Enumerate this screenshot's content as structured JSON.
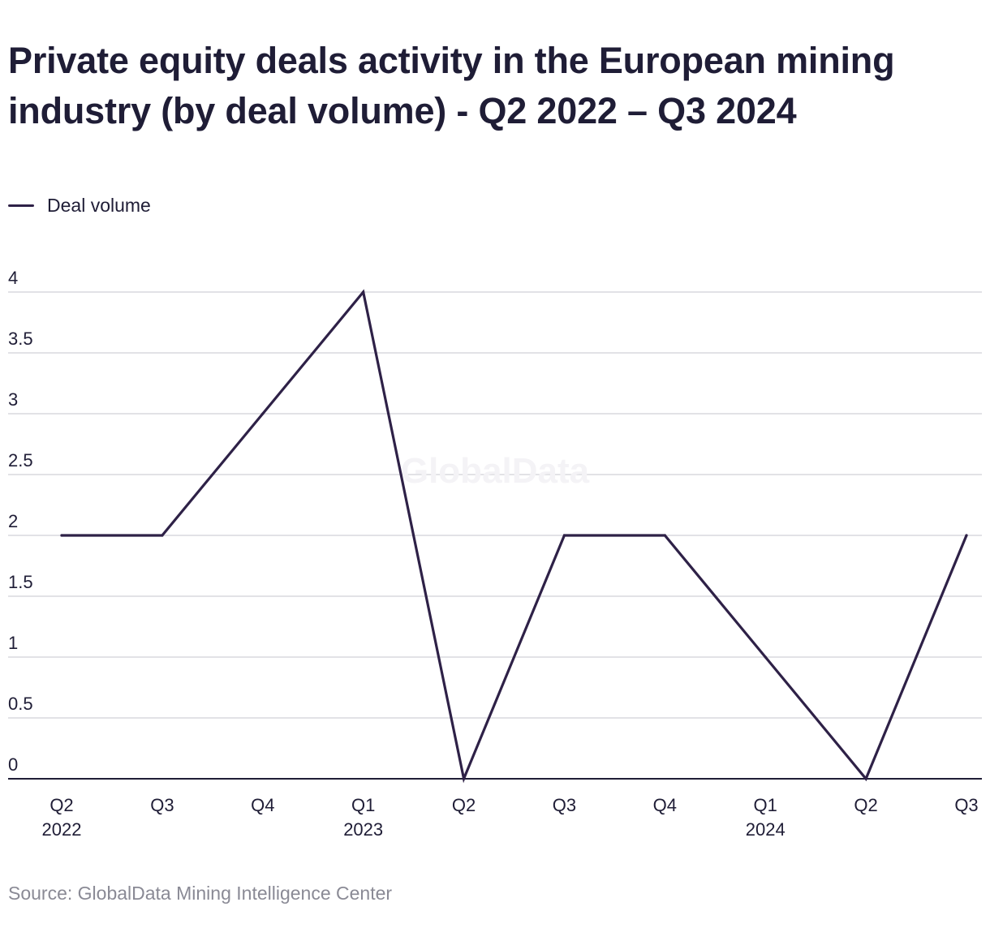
{
  "colors": {
    "line": "#2e2147",
    "grid": "#d9d9dd",
    "axis": "#1f1d36",
    "text": "#1f1d36",
    "muted": "#8a8a95",
    "watermark": "#f4f3f6"
  },
  "watermark": "GlobalData",
  "source": "Source: GlobalData Mining Intelligence Center",
  "chart_data": {
    "type": "line",
    "title": "Private equity deals activity in the European mining industry (by deal volume) - Q2 2022 – Q3 2024",
    "xlabel": "",
    "ylabel": "",
    "categories": [
      "Q2 2022",
      "Q3 2022",
      "Q4 2022",
      "Q1 2023",
      "Q2 2023",
      "Q3 2023",
      "Q4 2023",
      "Q1 2024",
      "Q2 2024",
      "Q3 2024"
    ],
    "x_tick_labels": [
      {
        "quarter": "Q2",
        "year": "2022"
      },
      {
        "quarter": "Q3",
        "year": ""
      },
      {
        "quarter": "Q4",
        "year": ""
      },
      {
        "quarter": "Q1",
        "year": "2023"
      },
      {
        "quarter": "Q2",
        "year": ""
      },
      {
        "quarter": "Q3",
        "year": ""
      },
      {
        "quarter": "Q4",
        "year": ""
      },
      {
        "quarter": "Q1",
        "year": "2024"
      },
      {
        "quarter": "Q2",
        "year": ""
      },
      {
        "quarter": "Q3",
        "year": ""
      }
    ],
    "series": [
      {
        "name": "Deal volume",
        "values": [
          2,
          2,
          3,
          4,
          0,
          2,
          2,
          1,
          0,
          2
        ]
      }
    ],
    "ylim": [
      0,
      4
    ],
    "y_ticks": [
      {
        "value": 0,
        "label": "0"
      },
      {
        "value": 0.5,
        "label": "0.5"
      },
      {
        "value": 1,
        "label": "1"
      },
      {
        "value": 1.5,
        "label": "1.5"
      },
      {
        "value": 2,
        "label": "2"
      },
      {
        "value": 2.5,
        "label": "2.5"
      },
      {
        "value": 3,
        "label": "3"
      },
      {
        "value": 3.5,
        "label": "3.5"
      },
      {
        "value": 4,
        "label": "4"
      }
    ],
    "grid": true,
    "legend": "top-left"
  }
}
